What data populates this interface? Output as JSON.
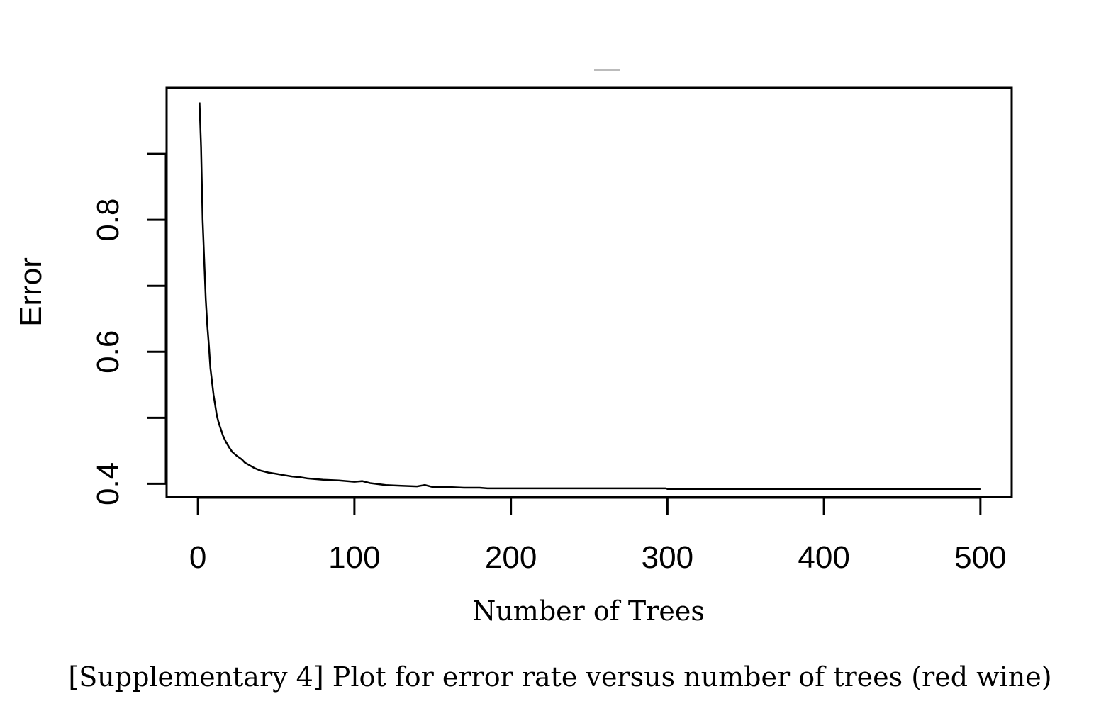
{
  "caption": "[Supplementary 4] Plot for error rate versus number of trees (red wine)",
  "chart_data": {
    "type": "line",
    "title": "",
    "xlabel": "Number of Trees",
    "ylabel": "Error",
    "xlim": [
      -20,
      520
    ],
    "ylim": [
      0.38,
      1.0
    ],
    "x_ticks": [
      0,
      100,
      200,
      300,
      400,
      500
    ],
    "x_tick_labels": [
      "0",
      "100",
      "200",
      "300",
      "400",
      "500"
    ],
    "y_ticks": [
      0.4,
      0.5,
      0.6,
      0.7,
      0.8,
      0.9
    ],
    "y_tick_labels": [
      "0.4",
      "",
      "0.6",
      "",
      "0.8",
      ""
    ],
    "grid": false,
    "legend": "none",
    "line_color": "#000000",
    "series": [
      {
        "x": [
          1,
          2,
          3,
          4,
          5,
          6,
          7,
          8,
          9,
          10,
          11,
          12,
          13,
          14,
          15,
          16,
          18,
          20,
          22,
          25,
          28,
          30,
          33,
          36,
          40,
          45,
          50,
          55,
          60,
          65,
          70,
          80,
          90,
          100,
          105,
          110,
          120,
          130,
          140,
          145,
          150,
          160,
          170,
          180,
          185,
          200,
          250,
          299,
          300,
          350,
          400,
          450,
          500
        ],
        "y": [
          0.978,
          0.91,
          0.8,
          0.74,
          0.68,
          0.64,
          0.61,
          0.575,
          0.555,
          0.535,
          0.52,
          0.505,
          0.495,
          0.487,
          0.48,
          0.473,
          0.463,
          0.455,
          0.448,
          0.442,
          0.437,
          0.432,
          0.428,
          0.424,
          0.42,
          0.417,
          0.415,
          0.413,
          0.411,
          0.41,
          0.408,
          0.406,
          0.405,
          0.403,
          0.404,
          0.401,
          0.398,
          0.397,
          0.396,
          0.398,
          0.395,
          0.395,
          0.394,
          0.394,
          0.393,
          0.393,
          0.393,
          0.393,
          0.392,
          0.392,
          0.392,
          0.392,
          0.392
        ]
      }
    ]
  }
}
